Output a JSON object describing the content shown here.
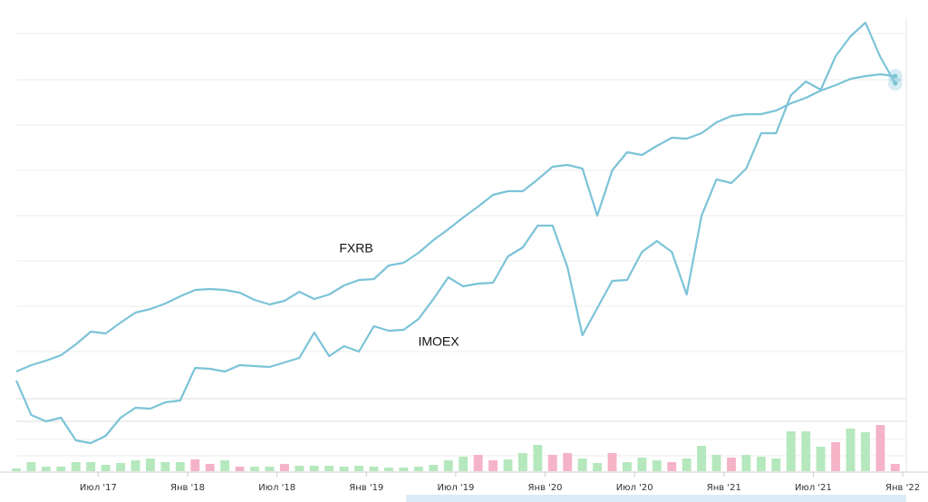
{
  "chart_data": [
    {
      "type": "line",
      "x": [
        1,
        2,
        3,
        4,
        5,
        6,
        7,
        8,
        9,
        10,
        11,
        12,
        13,
        14,
        15,
        16,
        17,
        18,
        19,
        20,
        21,
        22,
        23,
        24,
        25,
        26,
        27,
        28,
        29,
        30,
        31,
        32,
        33,
        34,
        35,
        36,
        37,
        38,
        39,
        40,
        41,
        42,
        43,
        44,
        45,
        46,
        47,
        48,
        49,
        50,
        51,
        52,
        53,
        54,
        55,
        56,
        57,
        58,
        59,
        60
      ],
      "xlim": [
        1,
        60.8
      ],
      "ylim": [
        0,
        96
      ],
      "series": [
        {
          "name": "FXRB",
          "color": "#7cc3d8",
          "values": [
            18,
            19.4,
            20.4,
            21.6,
            24,
            26.8,
            26.4,
            28.8,
            31,
            31.8,
            33,
            34.6,
            36,
            36.2,
            36,
            35.4,
            33.8,
            32.8,
            33.6,
            35.6,
            34,
            35,
            37,
            38.2,
            38.4,
            41.4,
            42,
            44.2,
            47,
            49.4,
            52,
            54.4,
            57,
            57.8,
            57.8,
            60.4,
            63.2,
            63.6,
            62.8,
            52.4,
            62.4,
            66.4,
            65.8,
            67.8,
            69.6,
            69.4,
            70.6,
            73,
            74.4,
            74.8,
            74.8,
            75.6,
            77.2,
            78.4,
            80,
            81.2,
            82.6,
            83.2,
            83.6,
            83.2
          ]
        },
        {
          "name": "IMOEX",
          "color": "#7cc3d8",
          "values": [
            16,
            8.4,
            7,
            7.8,
            2.8,
            2.2,
            3.8,
            7.8,
            10,
            9.8,
            11.2,
            11.6,
            18.8,
            18.6,
            18,
            19.4,
            19.2,
            19,
            20,
            21,
            26.6,
            21.4,
            23.6,
            22.4,
            28,
            27,
            27.2,
            29.6,
            34,
            38.8,
            36.8,
            37.4,
            37.6,
            43.4,
            45.4,
            50.2,
            50.2,
            41,
            26,
            32,
            38,
            38.2,
            44.4,
            46.8,
            44.4,
            35,
            52.4,
            60.4,
            59.6,
            62.8,
            70.6,
            70.6,
            79,
            82,
            80.2,
            87.6,
            92,
            95,
            87.4,
            81.6
          ]
        }
      ]
    },
    {
      "type": "bar",
      "x": [
        1,
        2,
        3,
        4,
        5,
        6,
        7,
        8,
        9,
        10,
        11,
        12,
        13,
        14,
        15,
        16,
        17,
        18,
        19,
        20,
        21,
        22,
        23,
        24,
        25,
        26,
        27,
        28,
        29,
        30,
        31,
        32,
        33,
        34,
        35,
        36,
        37,
        38,
        39,
        40,
        41,
        42,
        43,
        44,
        45,
        46,
        47,
        48,
        49,
        50,
        51,
        52,
        53,
        54,
        55,
        56,
        57,
        58,
        59,
        60
      ],
      "xlim": [
        1,
        60.8
      ],
      "ylim": [
        0,
        55
      ],
      "values": [
        3,
        10,
        5,
        5,
        10,
        10,
        7,
        9,
        12,
        14,
        10,
        10,
        13,
        8,
        12,
        5,
        5,
        5,
        8,
        6,
        6,
        6,
        5,
        6,
        5,
        4,
        4,
        5,
        7,
        12,
        16,
        18,
        12,
        13,
        20,
        29,
        18,
        20,
        14,
        9,
        20,
        10,
        15,
        12,
        10,
        14,
        28,
        18,
        15,
        18,
        16,
        14,
        44,
        44,
        27,
        32,
        47,
        43,
        51,
        8
      ],
      "colors": [
        "#b5e8bd",
        "#b5e8bd",
        "#b5e8bd",
        "#b5e8bd",
        "#b5e8bd",
        "#b5e8bd",
        "#b5e8bd",
        "#b5e8bd",
        "#b5e8bd",
        "#b5e8bd",
        "#b5e8bd",
        "#b5e8bd",
        "#f5b3c8",
        "#f5b3c8",
        "#b5e8bd",
        "#f5b3c8",
        "#b5e8bd",
        "#b5e8bd",
        "#f5b3c8",
        "#b5e8bd",
        "#b5e8bd",
        "#b5e8bd",
        "#b5e8bd",
        "#b5e8bd",
        "#b5e8bd",
        "#b5e8bd",
        "#b5e8bd",
        "#b5e8bd",
        "#b5e8bd",
        "#b5e8bd",
        "#b5e8bd",
        "#f5b3c8",
        "#f5b3c8",
        "#b5e8bd",
        "#b5e8bd",
        "#b5e8bd",
        "#f5b3c8",
        "#f5b3c8",
        "#b5e8bd",
        "#b5e8bd",
        "#f5b3c8",
        "#b5e8bd",
        "#b5e8bd",
        "#b5e8bd",
        "#f5b3c8",
        "#b5e8bd",
        "#b5e8bd",
        "#b5e8bd",
        "#f5b3c8",
        "#b5e8bd",
        "#b5e8bd",
        "#b5e8bd",
        "#b5e8bd",
        "#b5e8bd",
        "#b5e8bd",
        "#f5b3c8",
        "#b5e8bd",
        "#b5e8bd",
        "#f5b3c8",
        "#f5b3c8"
      ],
      "xticks": [
        {
          "value": 6.5,
          "label": "Июл '17"
        },
        {
          "value": 12.5,
          "label": "Янв '18"
        },
        {
          "value": 18.5,
          "label": "Июл '18"
        },
        {
          "value": 24.5,
          "label": "Янв '19"
        },
        {
          "value": 30.5,
          "label": "Июл '19"
        },
        {
          "value": 36.5,
          "label": "Янв '20"
        },
        {
          "value": 42.5,
          "label": "Июл '20"
        },
        {
          "value": 48.5,
          "label": "Янв '21"
        },
        {
          "value": 54.5,
          "label": "Июл '21"
        },
        {
          "value": 60.5,
          "label": "Янв '22"
        }
      ]
    }
  ]
}
